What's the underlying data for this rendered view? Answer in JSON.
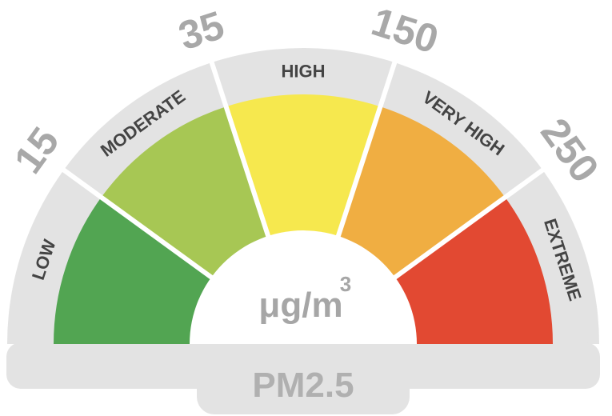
{
  "gauge": {
    "segments": [
      {
        "label": "LOW",
        "color": "#52a552"
      },
      {
        "label": "MODERATE",
        "color": "#a7c754"
      },
      {
        "label": "HIGH",
        "color": "#f6e84e"
      },
      {
        "label": "VERY HIGH",
        "color": "#f0ae42"
      },
      {
        "label": "EXTREME",
        "color": "#e24932"
      }
    ],
    "ticks": [
      "15",
      "35",
      "150",
      "250"
    ],
    "unit": "μg/m",
    "unit_superscript": "3",
    "pollutant": "PM2.5",
    "band_color": "#e3e3e3",
    "divider_color": "#ffffff"
  }
}
